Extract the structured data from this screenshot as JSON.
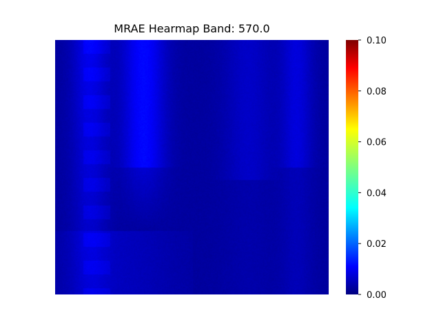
{
  "chart_data": {
    "type": "heatmap",
    "title": "MRAE Hearmap Band: 570.0",
    "xlabel": "",
    "ylabel": "",
    "colormap": "jet",
    "colorbar": {
      "vmin": 0.0,
      "vmax": 0.1,
      "ticks": [
        0.0,
        0.02,
        0.04,
        0.06,
        0.08,
        0.1
      ],
      "tick_labels": [
        "0.00",
        "0.02",
        "0.04",
        "0.06",
        "0.08",
        "0.10"
      ]
    },
    "axes_visible": false,
    "value_range_observed": [
      0.0,
      0.02
    ],
    "description_of_values": "per-pixel error map; mostly near 0.00 with faint vertical bands reaching about 0.015"
  }
}
